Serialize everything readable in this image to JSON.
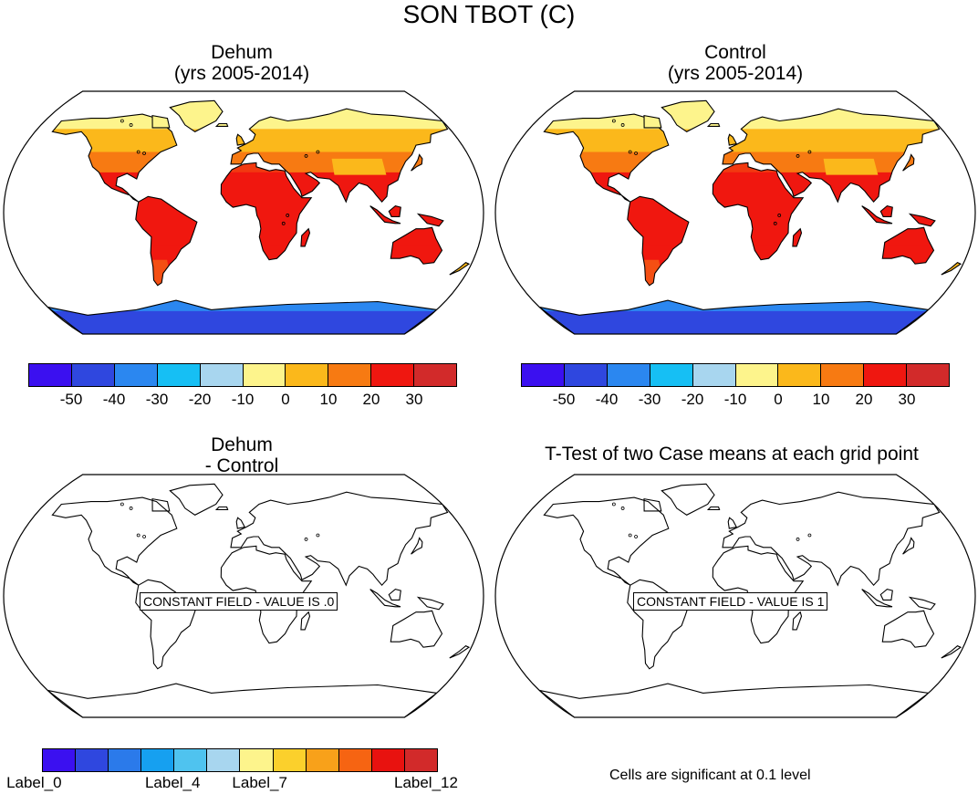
{
  "figure": {
    "title": "SON TBOT (C)"
  },
  "panels": [
    {
      "id": "dehum",
      "title_line1": "Dehum",
      "title_line2": "(yrs 2005-2014)",
      "filled": true,
      "antarctic": "cold"
    },
    {
      "id": "control",
      "title_line1": "Control",
      "title_line2": "(yrs 2005-2014)",
      "filled": true,
      "antarctic": "cold"
    },
    {
      "id": "diff",
      "title_line1": "Dehum",
      "title_line2": "- Control",
      "filled": false,
      "constant_label": "CONSTANT FIELD - VALUE IS .0"
    },
    {
      "id": "ttest",
      "title_line1": "T-Test of two Case means at each grid point",
      "title_line2": "",
      "filled": false,
      "constant_label": "CONSTANT FIELD - VALUE IS 1"
    }
  ],
  "colorbar_top": {
    "colors": [
      "#3b10f0",
      "#2f47df",
      "#2b87f0",
      "#16bff4",
      "#a8d6ef",
      "#fdf48c",
      "#fbb81b",
      "#f77a12",
      "#ef1710",
      "#d22a2a"
    ],
    "tick_labels": [
      "-50",
      "-40",
      "-30",
      "-20",
      "-10",
      "0",
      "10",
      "20",
      "30"
    ]
  },
  "colorbar_bottom": {
    "colors": [
      "#3b10f0",
      "#2f47df",
      "#2b7aea",
      "#16a0f0",
      "#4fc3ef",
      "#a8d6ef",
      "#fdf48c",
      "#fbd02c",
      "#f8a11a",
      "#f66412",
      "#e8120f",
      "#d22a2a"
    ],
    "tick_labels": [
      "Label_0",
      "Label_4",
      "Label_7",
      "Label_12"
    ]
  },
  "significance_note": "Cells are significant at 0.1 level",
  "chart_data": [
    {
      "type": "heatmap",
      "title": "Dehum\n(yrs 2005-2014)",
      "field": "TBOT",
      "units": "C",
      "season": "SON",
      "contour_levels": [
        -50,
        -40,
        -30,
        -20,
        -10,
        0,
        10,
        20,
        30
      ]
    },
    {
      "type": "heatmap",
      "title": "Control\n(yrs 2005-2014)",
      "field": "TBOT",
      "units": "C",
      "season": "SON",
      "contour_levels": [
        -50,
        -40,
        -30,
        -20,
        -10,
        0,
        10,
        20,
        30
      ]
    },
    {
      "type": "heatmap",
      "title": "Dehum\n- Control",
      "constant_value": 0
    },
    {
      "type": "heatmap",
      "title": "T-Test of two Case means at each grid point",
      "constant_value": 1
    }
  ]
}
